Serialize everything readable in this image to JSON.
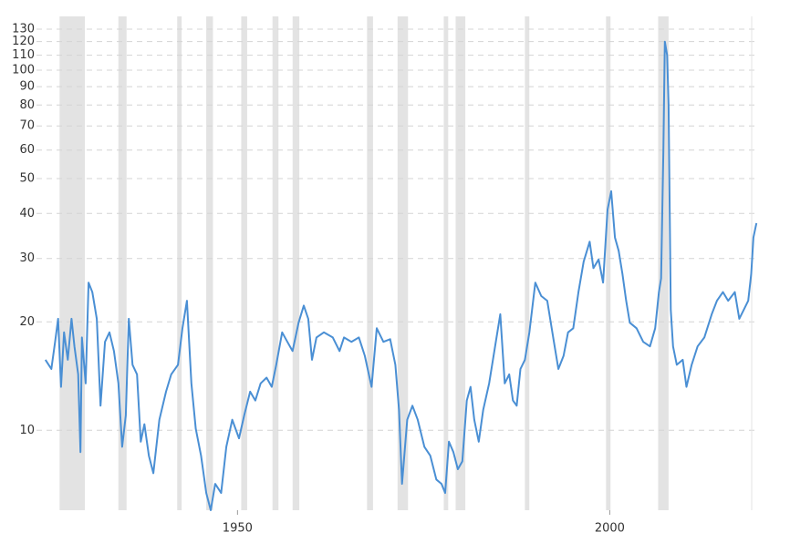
{
  "chart_data": {
    "type": "line",
    "log_scale": true,
    "grid": true,
    "xlim": [
      1923,
      2019.8
    ],
    "xticks": [
      1950,
      2000
    ],
    "ylim": [
      6,
      141
    ],
    "yticks": [
      10,
      20,
      30,
      40,
      50,
      60,
      70,
      80,
      90,
      100,
      110,
      120,
      130
    ],
    "recession_color": "#e3e3e3",
    "recessions": [
      [
        1926.1,
        1929.5
      ],
      [
        1934.0,
        1935.1
      ],
      [
        1941.9,
        1942.5
      ],
      [
        1945.8,
        1946.7
      ],
      [
        1950.5,
        1951.3
      ],
      [
        1954.7,
        1955.5
      ],
      [
        1957.4,
        1958.3
      ],
      [
        1967.4,
        1968.2
      ],
      [
        1971.5,
        1972.9
      ],
      [
        1977.7,
        1978.3
      ],
      [
        1979.3,
        1980.6
      ],
      [
        1988.6,
        1989.2
      ],
      [
        1999.5,
        2000.1
      ],
      [
        2006.5,
        2007.9
      ]
    ],
    "series": [
      {
        "color": "#4a8fd4",
        "x": [
          1924.2,
          1925.0,
          1925.5,
          1925.9,
          1926.3,
          1926.7,
          1927.2,
          1927.7,
          1928.1,
          1928.6,
          1928.9,
          1929.1,
          1929.6,
          1930.0,
          1930.5,
          1931.1,
          1931.6,
          1932.2,
          1932.8,
          1933.4,
          1934.0,
          1934.5,
          1935.0,
          1935.4,
          1935.9,
          1936.5,
          1937.0,
          1937.5,
          1938.1,
          1938.7,
          1939.5,
          1940.4,
          1941.1,
          1942.0,
          1942.6,
          1943.2,
          1943.8,
          1944.4,
          1945.1,
          1945.8,
          1946.4,
          1947.0,
          1947.8,
          1948.5,
          1949.3,
          1950.2,
          1950.9,
          1951.7,
          1952.4,
          1953.1,
          1953.9,
          1954.6,
          1955.2,
          1956.0,
          1956.7,
          1957.4,
          1958.2,
          1958.9,
          1959.5,
          1960.0,
          1960.6,
          1961.6,
          1962.8,
          1963.7,
          1964.3,
          1965.3,
          1966.3,
          1967.1,
          1968.0,
          1968.7,
          1969.6,
          1970.5,
          1971.2,
          1971.7,
          1972.1,
          1972.8,
          1973.5,
          1974.2,
          1975.1,
          1975.9,
          1976.7,
          1977.4,
          1977.9,
          1978.4,
          1979.0,
          1979.6,
          1980.2,
          1980.8,
          1981.3,
          1981.8,
          1982.4,
          1983.0,
          1983.8,
          1984.5,
          1985.3,
          1985.9,
          1986.5,
          1987.0,
          1987.5,
          1988.0,
          1988.6,
          1989.2,
          1990.0,
          1990.8,
          1991.6,
          1992.4,
          1993.1,
          1993.8,
          1994.4,
          1995.1,
          1995.8,
          1996.5,
          1997.3,
          1997.8,
          1998.5,
          1999.1,
          1999.7,
          2000.2,
          2000.7,
          2001.2,
          2001.7,
          2002.2,
          2002.7,
          2003.6,
          2004.5,
          2005.4,
          2006.1,
          2006.6,
          2006.9,
          2007.2,
          2007.4,
          2007.7,
          2007.9,
          2008.2,
          2008.5,
          2009.0,
          2009.8,
          2010.3,
          2011.0,
          2011.8,
          2012.7,
          2013.7,
          2014.4,
          2015.2,
          2015.9,
          2016.8,
          2017.4,
          2018.0,
          2018.6,
          2019.0,
          2019.3,
          2019.7
        ],
        "values": [
          15.7,
          14.8,
          17.6,
          20.4,
          13.2,
          18.7,
          15.7,
          20.4,
          17.1,
          14.3,
          8.7,
          18.1,
          13.5,
          25.7,
          24.2,
          20.4,
          11.7,
          17.6,
          18.7,
          16.6,
          13.5,
          9.0,
          11.0,
          20.4,
          15.2,
          14.3,
          9.3,
          10.4,
          8.5,
          7.6,
          10.7,
          12.8,
          14.3,
          15.2,
          19.2,
          22.9,
          13.5,
          10.1,
          8.5,
          6.7,
          6.0,
          7.1,
          6.7,
          9.0,
          10.7,
          9.5,
          11.0,
          12.8,
          12.1,
          13.5,
          14.0,
          13.2,
          15.2,
          18.7,
          17.6,
          16.6,
          19.9,
          22.2,
          20.4,
          15.7,
          18.1,
          18.7,
          18.1,
          16.6,
          18.1,
          17.6,
          18.1,
          16.1,
          13.2,
          19.2,
          17.6,
          17.9,
          15.2,
          11.4,
          7.1,
          10.7,
          11.7,
          10.7,
          9.0,
          8.5,
          7.3,
          7.1,
          6.7,
          9.3,
          8.7,
          7.8,
          8.2,
          12.1,
          13.2,
          10.7,
          9.3,
          11.4,
          13.5,
          16.6,
          21.0,
          13.5,
          14.3,
          12.1,
          11.7,
          14.8,
          15.7,
          18.7,
          25.7,
          23.6,
          22.9,
          18.1,
          14.8,
          16.1,
          18.7,
          19.2,
          24.2,
          29.4,
          33.4,
          28.2,
          29.8,
          25.7,
          41.0,
          46.1,
          34.3,
          31.5,
          27.2,
          22.9,
          19.9,
          19.2,
          17.6,
          17.1,
          19.2,
          24.2,
          26.4,
          59.9,
          120,
          110,
          80,
          21.6,
          17.1,
          15.2,
          15.7,
          13.2,
          15.2,
          17.1,
          18.1,
          21.0,
          22.9,
          24.2,
          22.9,
          24.2,
          20.4,
          21.6,
          22.9,
          27.2,
          34.3,
          37.6
        ]
      }
    ]
  }
}
